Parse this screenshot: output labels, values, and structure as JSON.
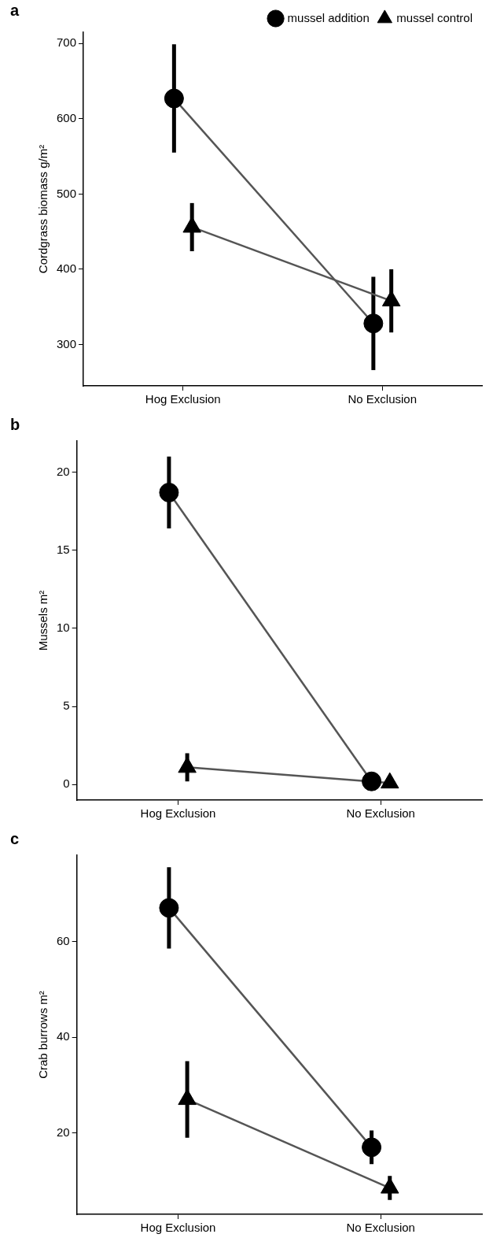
{
  "chart_data": [
    {
      "type": "line",
      "title": "a",
      "categories": [
        "Hog Exclusion",
        "No Exclusion"
      ],
      "y_label": "Cordgrass biomass g/m²",
      "ylim": [
        245,
        715
      ],
      "yticks": [
        300,
        400,
        500,
        600,
        700
      ],
      "grid": false,
      "legend": "top right",
      "series": [
        {
          "name": "mussel addition",
          "color": "#000000",
          "marker": "circle",
          "values": [
            627,
            328
          ],
          "errors": [
            72,
            62
          ]
        },
        {
          "name": "mussel control",
          "color": "#000000",
          "marker": "triangle",
          "values": [
            456,
            358
          ],
          "errors": [
            32,
            42
          ]
        }
      ]
    },
    {
      "type": "line",
      "title": "b",
      "categories": [
        "Hog Exclusion",
        "No Exclusion"
      ],
      "y_label": "Mussels m²",
      "ylim": [
        -1,
        22
      ],
      "yticks": [
        0,
        5,
        10,
        15,
        20
      ],
      "grid": false,
      "series": [
        {
          "name": "mussel addition",
          "color": "#000000",
          "marker": "circle",
          "values": [
            18.7,
            0.2
          ],
          "errors": [
            2.3,
            0.1
          ]
        },
        {
          "name": "mussel control",
          "color": "#000000",
          "marker": "triangle",
          "values": [
            1.1,
            0.1
          ],
          "errors": [
            0.9,
            0.1
          ]
        }
      ]
    },
    {
      "type": "line",
      "title": "c",
      "categories": [
        "Hog Exclusion",
        "No Exclusion"
      ],
      "y_label": "Crab burrows m²",
      "ylim": [
        3,
        78
      ],
      "yticks": [
        20,
        40,
        60
      ],
      "grid": false,
      "series": [
        {
          "name": "mussel addition",
          "color": "#000000",
          "marker": "circle",
          "values": [
            67,
            17
          ],
          "errors": [
            8.5,
            3.5
          ]
        },
        {
          "name": "mussel control",
          "color": "#000000",
          "marker": "triangle",
          "values": [
            27,
            8.5
          ],
          "errors": [
            8,
            2.5
          ]
        }
      ]
    }
  ]
}
